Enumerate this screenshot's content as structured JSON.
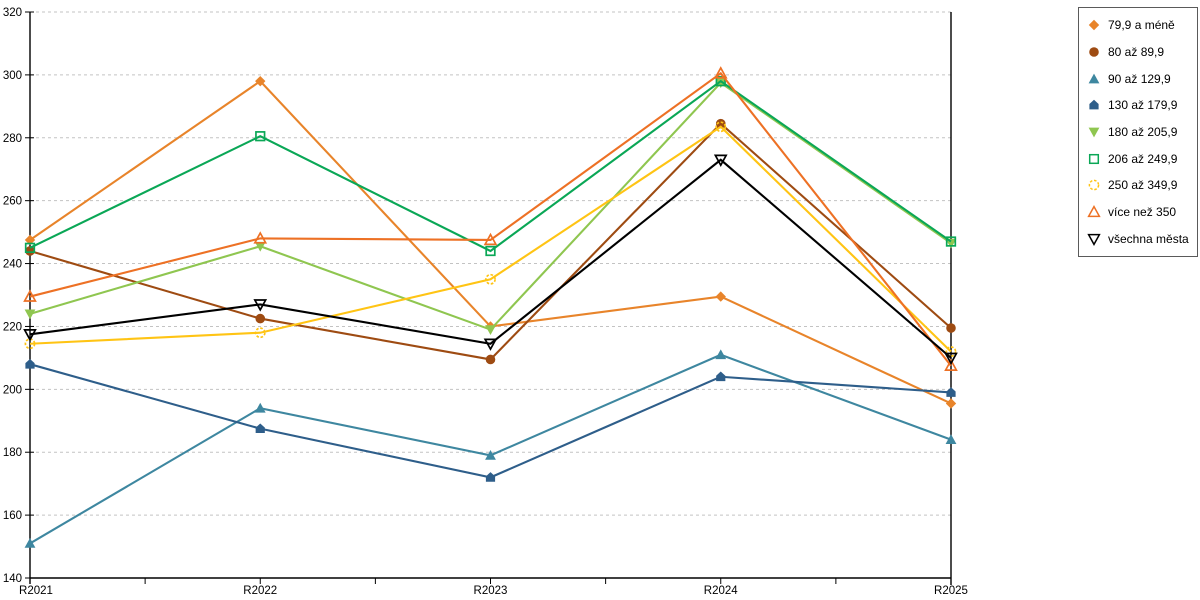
{
  "chart_data": {
    "type": "line",
    "title": "",
    "xlabel": "",
    "ylabel": "",
    "categories": [
      "R2021",
      "R2022",
      "R2023",
      "R2024",
      "R2025"
    ],
    "ylim": [
      140,
      320
    ],
    "ytick_step": 20,
    "grid": "horizontal-dashed",
    "legend_position": "right",
    "series": [
      {
        "name": "79,9 a méně",
        "color": "#E8842A",
        "marker": "diamond",
        "values": [
          247.5,
          298,
          220,
          229.5,
          195.5
        ]
      },
      {
        "name": "80 až 89,9",
        "color": "#9E4B12",
        "marker": "circle",
        "values": [
          244,
          222.5,
          209.5,
          284.5,
          219.5
        ]
      },
      {
        "name": "90 až 129,9",
        "color": "#3E87A0",
        "marker": "triangle-up",
        "values": [
          151,
          194,
          179,
          211,
          184
        ]
      },
      {
        "name": "130 až 179,9",
        "color": "#2E5E8A",
        "marker": "pentagon",
        "values": [
          208,
          187.5,
          172,
          204,
          199
        ]
      },
      {
        "name": "180 až 205,9",
        "color": "#8FC650",
        "marker": "triangle-down",
        "values": [
          224,
          245.5,
          219,
          297.5,
          246.5
        ]
      },
      {
        "name": "206 až 249,9",
        "color": "#0AA756",
        "marker": "square-open",
        "values": [
          245,
          280.5,
          244,
          298,
          247
        ]
      },
      {
        "name": "250 až 349,9",
        "color": "#FFC414",
        "marker": "circle-open-dashed",
        "values": [
          214.5,
          218,
          235,
          283.5,
          212
        ]
      },
      {
        "name": "více než 350",
        "color": "#ED7125",
        "marker": "triangle-up-open",
        "values": [
          229.5,
          248,
          247.5,
          300.5,
          207.5
        ]
      },
      {
        "name": "všechna města",
        "color": "#000000",
        "marker": "triangle-down-open",
        "values": [
          217.5,
          227,
          214.5,
          273,
          210
        ]
      }
    ]
  },
  "colors": {
    "axis": "#000000",
    "grid": "#c3c3c3",
    "text": "#000000",
    "background": "#ffffff"
  }
}
